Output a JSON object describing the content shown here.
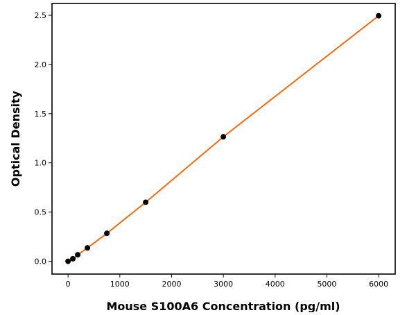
{
  "chart_data": {
    "type": "line",
    "title": "",
    "xlabel": "Mouse S100A6 Concentration (pg/ml)",
    "ylabel": "Optical Density",
    "xlim": [
      -310,
      6320
    ],
    "ylim": [
      -0.13,
      2.62
    ],
    "x_ticks": [
      0,
      1000,
      2000,
      3000,
      4000,
      5000,
      6000
    ],
    "y_ticks": [
      0.0,
      0.5,
      1.0,
      1.5,
      2.0,
      2.5
    ],
    "y_tick_labels": [
      "0.0",
      "0.5",
      "1.0",
      "1.5",
      "2.0",
      "2.5"
    ],
    "grid": false,
    "series": [
      {
        "x": [
          0,
          93.75,
          187.5,
          375,
          750,
          1500,
          3000,
          6000
        ],
        "y": [
          0.0,
          0.026,
          0.066,
          0.136,
          0.284,
          0.6,
          1.265,
          2.495
        ],
        "line_color": "#f5690f",
        "marker_color": "#000000"
      }
    ]
  }
}
